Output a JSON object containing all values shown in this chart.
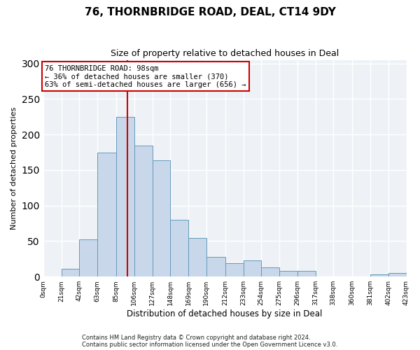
{
  "title": "76, THORNBRIDGE ROAD, DEAL, CT14 9DY",
  "subtitle": "Size of property relative to detached houses in Deal",
  "xlabel": "Distribution of detached houses by size in Deal",
  "ylabel": "Number of detached properties",
  "bar_color": "#c8d8ea",
  "bar_edge_color": "#6699bb",
  "bin_edges": [
    0,
    21,
    42,
    63,
    85,
    106,
    127,
    148,
    169,
    190,
    212,
    233,
    254,
    275,
    296,
    317,
    338,
    360,
    381,
    402,
    423
  ],
  "bar_heights": [
    0,
    11,
    52,
    175,
    225,
    184,
    164,
    80,
    54,
    28,
    19,
    23,
    13,
    8,
    8,
    0,
    0,
    0,
    3,
    5
  ],
  "x_tick_labels": [
    "0sqm",
    "21sqm",
    "42sqm",
    "63sqm",
    "85sqm",
    "106sqm",
    "127sqm",
    "148sqm",
    "169sqm",
    "190sqm",
    "212sqm",
    "233sqm",
    "254sqm",
    "275sqm",
    "296sqm",
    "317sqm",
    "338sqm",
    "360sqm",
    "381sqm",
    "402sqm",
    "423sqm"
  ],
  "vline_x": 98,
  "vline_color": "#cc0000",
  "annotation_line1": "76 THORNBRIDGE ROAD: 98sqm",
  "annotation_line2": "← 36% of detached houses are smaller (370)",
  "annotation_line3": "63% of semi-detached houses are larger (656) →",
  "annotation_box_color": "#ffffff",
  "annotation_box_edge_color": "#cc0000",
  "ylim": [
    0,
    305
  ],
  "yticks": [
    0,
    50,
    100,
    150,
    200,
    250,
    300
  ],
  "footer1": "Contains HM Land Registry data © Crown copyright and database right 2024.",
  "footer2": "Contains public sector information licensed under the Open Government Licence v3.0.",
  "background_color": "#eef2f6",
  "grid_color": "#ffffff",
  "fig_bg_color": "#ffffff"
}
